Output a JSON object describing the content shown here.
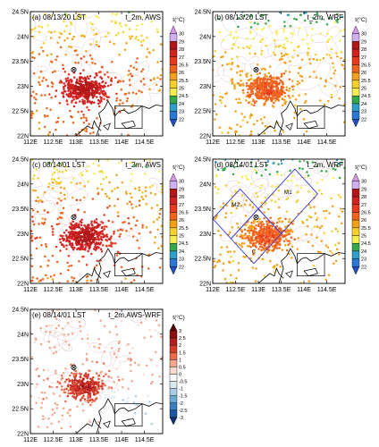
{
  "chart_data": [
    {
      "type": "scatter",
      "panel": "(a) 08/13/20 LST",
      "title_right": "t_2m, AWS",
      "unit": "t(°C)",
      "colorbar_ticks": [
        "30",
        "29",
        "28",
        "27",
        "26.5",
        "26",
        "25.5",
        "25",
        "24.5",
        "24",
        "23",
        "22"
      ],
      "colorbar_colors": [
        "#d996e8",
        "#d0b0f0",
        "#b31818",
        "#d12222",
        "#e8381f",
        "#f0641e",
        "#f4a11a",
        "#f5d12a",
        "#f6ee50",
        "#34a84a",
        "#2f9fc9",
        "#2c76d4",
        "#1f4fbf"
      ],
      "xticks": [
        "112E",
        "112.5E",
        "113E",
        "113.5E",
        "114E",
        "114.5E"
      ],
      "yticks": [
        "24.5N",
        "24N",
        "23.5N",
        "23N",
        "22.5N",
        "22N"
      ],
      "xlim": [
        112.0,
        114.9
      ],
      "ylim": [
        22.0,
        24.5
      ],
      "field": "aws"
    },
    {
      "type": "scatter",
      "panel": "(b) 08/13/20 LST",
      "title_right": "t_2m, WRF",
      "unit": "t(°C)",
      "colorbar_ticks": [
        "30",
        "29",
        "28",
        "27",
        "26.5",
        "26",
        "25.5",
        "25",
        "24.5",
        "24",
        "23",
        "22"
      ],
      "colorbar_colors": [
        "#d996e8",
        "#d0b0f0",
        "#b31818",
        "#d12222",
        "#e8381f",
        "#f0641e",
        "#f4a11a",
        "#f5d12a",
        "#f6ee50",
        "#34a84a",
        "#2f9fc9",
        "#2c76d4",
        "#1f4fbf"
      ],
      "xticks": [
        "112E",
        "112.5E",
        "113E",
        "113.5E",
        "114E",
        "114.5E"
      ],
      "yticks": [
        "24.5N",
        "24N",
        "23.5N",
        "23N",
        "22.5N",
        "22N"
      ],
      "xlim": [
        112.0,
        114.9
      ],
      "ylim": [
        22.0,
        24.5
      ],
      "field": "wrf"
    },
    {
      "type": "scatter",
      "panel": "(c) 08/14/01 LST",
      "title_right": "t_2m, AWS",
      "unit": "t(°C)",
      "colorbar_ticks": [
        "30",
        "29",
        "28",
        "27",
        "26.5",
        "26",
        "25.5",
        "25",
        "24.5",
        "24",
        "23",
        "22"
      ],
      "colorbar_colors": [
        "#d996e8",
        "#d0b0f0",
        "#b31818",
        "#d12222",
        "#e8381f",
        "#f0641e",
        "#f4a11a",
        "#f5d12a",
        "#f6ee50",
        "#34a84a",
        "#2f9fc9",
        "#2c76d4",
        "#1f4fbf"
      ],
      "xticks": [
        "112E",
        "112.5E",
        "113E",
        "113.5E",
        "114E",
        "114.5E"
      ],
      "yticks": [
        "24.5N",
        "24N",
        "23.5N",
        "23N",
        "22.5N",
        "22N"
      ],
      "xlim": [
        112.0,
        114.9
      ],
      "ylim": [
        22.0,
        24.5
      ],
      "field": "aws"
    },
    {
      "type": "scatter",
      "panel": "(d) 08/14/01 LST",
      "title_right": "t_2m, WRF",
      "unit": "t(°C)",
      "colorbar_ticks": [
        "30",
        "29",
        "28",
        "27",
        "26.5",
        "26",
        "25.5",
        "25",
        "24.5",
        "24",
        "23",
        "22"
      ],
      "colorbar_colors": [
        "#d996e8",
        "#d0b0f0",
        "#b31818",
        "#d12222",
        "#e8381f",
        "#f0641e",
        "#f4a11a",
        "#f5d12a",
        "#f6ee50",
        "#34a84a",
        "#2f9fc9",
        "#2c76d4",
        "#1f4fbf"
      ],
      "xticks": [
        "112E",
        "112.5E",
        "113E",
        "113.5E",
        "114E",
        "114.5E"
      ],
      "yticks": [
        "24.5N",
        "24N",
        "23.5N",
        "23N",
        "22.5N",
        "22N"
      ],
      "xlim": [
        112.0,
        114.9
      ],
      "ylim": [
        22.0,
        24.5
      ],
      "field": "wrf",
      "boxes": [
        {
          "label": "M2",
          "corners": [
            [
              112.0,
              23.3
            ],
            [
              112.6,
              23.9
            ],
            [
              113.0,
              23.5
            ],
            [
              112.4,
              22.9
            ]
          ]
        },
        {
          "label": "M1",
          "corners": [
            [
              113.0,
              23.5
            ],
            [
              113.8,
              24.3
            ],
            [
              114.3,
              23.8
            ],
            [
              113.5,
              23.0
            ]
          ]
        },
        {
          "label": "C",
          "corners": [
            [
              112.4,
              22.9
            ],
            [
              113.0,
              23.5
            ],
            [
              113.5,
              23.0
            ],
            [
              112.9,
              22.4
            ]
          ]
        }
      ]
    },
    {
      "type": "scatter",
      "panel": "(e) 08/14/01 LST",
      "title_right": "t_2m,AWS-WRF",
      "unit": "t(°C)",
      "colorbar_ticks": [
        "3",
        "2.5",
        "2",
        "1.5",
        "1",
        "0.5",
        "0",
        "-0.5",
        "-1",
        "-1.5",
        "-2",
        "-2.5",
        "-3"
      ],
      "colorbar_colors": [
        "#5a0000",
        "#8e0f0f",
        "#b52020",
        "#d43d2c",
        "#ea6a4c",
        "#f4a78c",
        "#fadbcc",
        "#ffffff",
        "#d9eaf5",
        "#a9cde6",
        "#6aa9d4",
        "#3c7fbf",
        "#1f579e",
        "#0f3470"
      ],
      "xticks": [
        "112E",
        "112.5E",
        "113E",
        "113.5E",
        "114E",
        "114.5E"
      ],
      "yticks": [
        "24.5N",
        "24N",
        "23.5N",
        "23N",
        "22.5N",
        "22N"
      ],
      "xlim": [
        112.0,
        114.9
      ],
      "ylim": [
        22.0,
        24.5
      ],
      "field": "diff"
    }
  ]
}
